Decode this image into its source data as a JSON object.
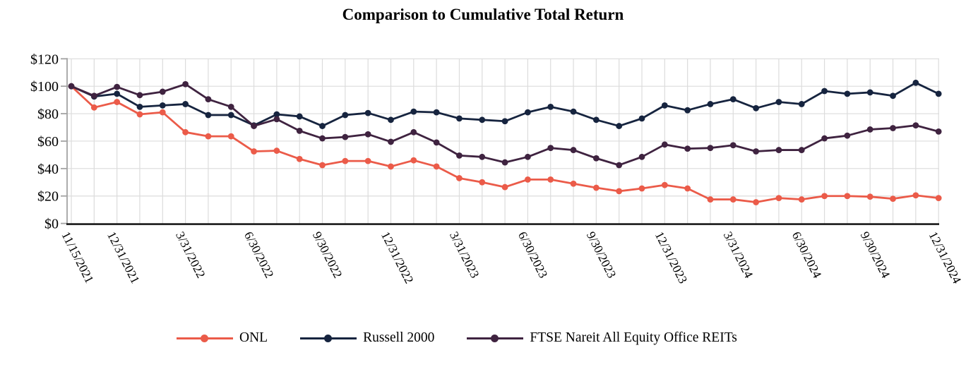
{
  "title": "Comparison to Cumulative Total Return",
  "colors": {
    "grid": "#DCDCDC",
    "y_axis": "#A3A3A3",
    "x_axis": "#1A1A1A",
    "text": "#000000",
    "onl": "#EB5B49",
    "russell_2000": "#16243F",
    "ftse_nareit_office": "#3F2340"
  },
  "chart_data": {
    "type": "line",
    "title": "Comparison to Cumulative Total Return",
    "x": [
      "11/15/2021",
      "11/30/2021",
      "12/31/2021",
      "1/31/2022",
      "2/28/2022",
      "3/31/2022",
      "4/30/2022",
      "5/31/2022",
      "6/30/2022",
      "7/31/2022",
      "8/31/2022",
      "9/30/2022",
      "10/31/2022",
      "11/30/2022",
      "12/31/2022",
      "1/31/2023",
      "2/28/2023",
      "3/31/2023",
      "4/30/2023",
      "5/31/2023",
      "6/30/2023",
      "7/31/2023",
      "8/31/2023",
      "9/30/2023",
      "10/31/2023",
      "11/30/2023",
      "12/31/2023",
      "1/31/2024",
      "2/29/2024",
      "3/31/2024",
      "4/30/2024",
      "5/31/2024",
      "6/30/2024",
      "7/31/2024",
      "8/31/2024",
      "9/30/2024",
      "10/31/2024",
      "11/30/2024",
      "12/31/2024"
    ],
    "series": [
      {
        "name": "ONL",
        "color": "#EB5B49",
        "values": [
          100,
          84.5,
          88.5,
          79.5,
          81,
          66.5,
          63.5,
          63.5,
          52.5,
          53,
          47,
          42.5,
          45.5,
          45.5,
          41.5,
          46,
          41.5,
          33,
          30,
          26.5,
          32,
          32,
          29,
          26,
          23.5,
          25.5,
          28,
          25.5,
          17.5,
          17.5,
          15.5,
          18.5,
          17.5,
          20,
          20,
          19.5,
          18,
          20.5,
          18.5
        ]
      },
      {
        "name": "Russell 2000",
        "color": "#16243F",
        "values": [
          100,
          92.5,
          94.5,
          85,
          86,
          87,
          79,
          79,
          71.5,
          79.5,
          78,
          71,
          79,
          80.5,
          75.5,
          81.5,
          81,
          76.5,
          75.5,
          74.5,
          81,
          85,
          81.5,
          75.5,
          71,
          76.5,
          86,
          82.5,
          87,
          90.5,
          84,
          88.5,
          87,
          96.5,
          94.5,
          95.5,
          93,
          102.5,
          94.5
        ]
      },
      {
        "name": "FTSE Nareit All Equity Office REITs",
        "color": "#3F2340",
        "values": [
          100,
          93,
          99.5,
          93.5,
          96,
          101.5,
          90.5,
          85,
          71,
          76,
          67.5,
          62,
          63,
          65,
          59.5,
          66.5,
          59,
          49.5,
          48.5,
          44.5,
          48.5,
          55,
          53.5,
          47.5,
          42.5,
          48.5,
          57.5,
          54.5,
          55,
          57,
          52.5,
          53.5,
          53.5,
          62,
          64,
          68.5,
          69.5,
          71.5,
          67
        ]
      }
    ],
    "x_ticks": [
      {
        "index": 0,
        "label": "11/15/2021"
      },
      {
        "index": 2,
        "label": "12/31/2021"
      },
      {
        "index": 5,
        "label": "3/31/2022"
      },
      {
        "index": 8,
        "label": "6/30/2022"
      },
      {
        "index": 11,
        "label": "9/30/2022"
      },
      {
        "index": 14,
        "label": "12/31/2022"
      },
      {
        "index": 17,
        "label": "3/31/2023"
      },
      {
        "index": 20,
        "label": "6/30/2023"
      },
      {
        "index": 23,
        "label": "9/30/2023"
      },
      {
        "index": 26,
        "label": "12/31/2023"
      },
      {
        "index": 29,
        "label": "3/31/2024"
      },
      {
        "index": 32,
        "label": "6/30/2024"
      },
      {
        "index": 35,
        "label": "9/30/2024"
      },
      {
        "index": 38,
        "label": "12/31/2024"
      }
    ],
    "y_ticks": [
      {
        "value": 0,
        "label": "$0"
      },
      {
        "value": 20,
        "label": "$20"
      },
      {
        "value": 40,
        "label": "$40"
      },
      {
        "value": 60,
        "label": "$60"
      },
      {
        "value": 80,
        "label": "$80"
      },
      {
        "value": 100,
        "label": "$100"
      },
      {
        "value": 120,
        "label": "$120"
      }
    ],
    "ylim": [
      0,
      120
    ],
    "grid": true,
    "legend_position": "bottom"
  }
}
